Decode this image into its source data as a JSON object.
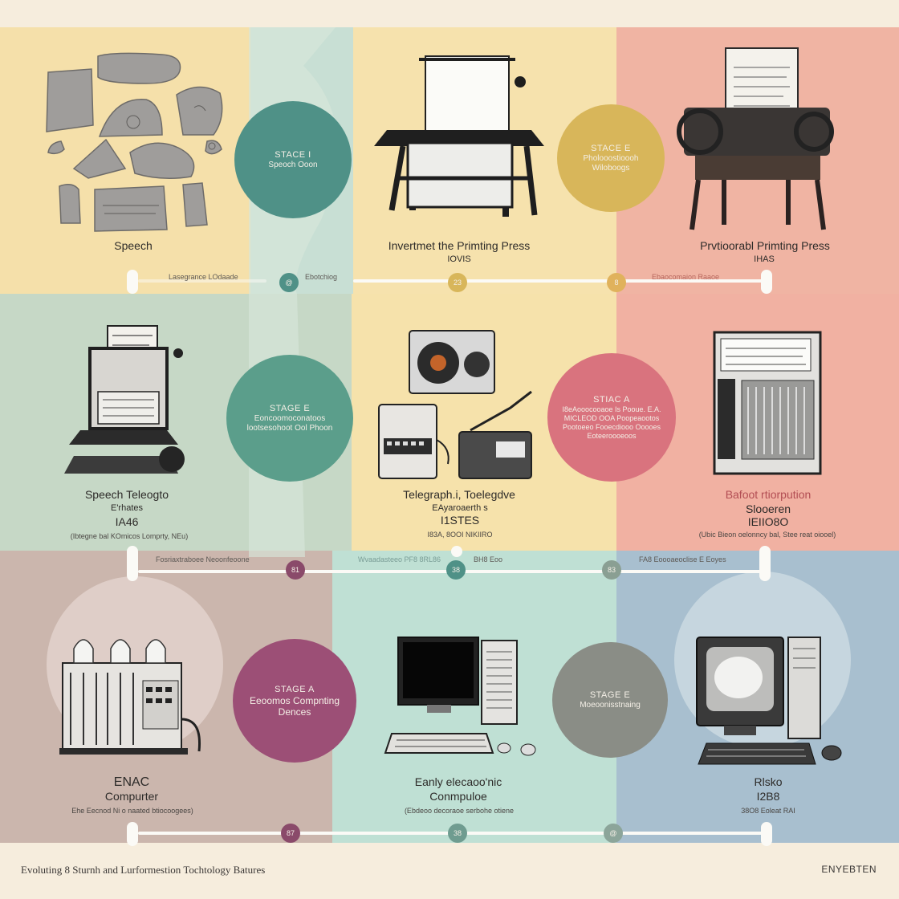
{
  "footer": {
    "title": "Evoluting 8 Sturnh and Lurformestion Tochtology Batures",
    "brand": "ENYEBTEN"
  },
  "colors": {
    "cream": "#f6eddd",
    "yellow": "#f5e0aa",
    "salmon": "#f0b4a3",
    "sage": "#c7d9c9",
    "mint": "#bfe0d6",
    "mauve": "#cbb5ac",
    "blue": "#a7bfcf",
    "teal": "#4f9187",
    "mustard": "#d8b65a",
    "tealgreen": "#5b9e8b",
    "rose": "#d9737e",
    "plum": "#9c4f76",
    "slate": "#8a8d86"
  },
  "row1": {
    "left_label": "Speech",
    "stage1": {
      "title": "STACE I",
      "sub": "Speoch Ooon"
    },
    "mid_label": "Invertmet the Primting Press",
    "mid_year": "IOVIS",
    "stage2": {
      "title": "STACE E",
      "sub": "Pholooostioooh Wiloboogs"
    },
    "right_label": "Prvtioorabl Primting Press",
    "right_year": "IHAS"
  },
  "timeline1": {
    "labels": [
      "Lasegrance LOdaade",
      "Ebotchiog",
      "Ebaocomaion Raaoe"
    ],
    "nodes": [
      "@",
      "23",
      "8"
    ]
  },
  "row2": {
    "left_label": "Speech Teleogto",
    "left_sub": "E'rhates",
    "left_year": "IA46",
    "left_note": "(Ibtegne bal KOmicos Lomprty, NEu)",
    "stage3": {
      "title": "STAGE E",
      "sub": "Eoncoomoconatoos lootsesohoot Ool Phoon"
    },
    "mid_label": "Telegraph.i, Toelegdve",
    "mid_sub": "EAyaroaerth s",
    "mid_year": "I1STES",
    "mid_note": "I83A, 8OOI NIKIIRO",
    "stage4": {
      "title": "STIAC A",
      "sub": "I8eAooocooaoe Is Pooue. E.A. MICLEOD OOA Poopeaootos Pootoeeo Fooecdiooo Ooooes Eoteeroooeoos"
    },
    "right_label": "Bafoot rtiorpution",
    "right_sub": "Slooeren",
    "right_year": "IEIIO8O",
    "right_note": "(Ubic Bieon oelonncy bal, Stee reat oiooel)"
  },
  "timeline2": {
    "labels": [
      "Fosriaxtraboee Neoonfeoone",
      "Wvaadasteeo PF8 8RL86",
      "BH8 Eoo",
      "FA8 Eoooaeoclise E Eoyes"
    ],
    "nodes": [
      "81",
      "38",
      "83"
    ]
  },
  "row3": {
    "left_label": "ENAC",
    "left_sub": "Compurter",
    "left_note": "Ehe Eecnod Ni o naated btiocoogees)",
    "stage5": {
      "title": "STAGE A",
      "sub": "Eeoomos Compnting Dences"
    },
    "mid_label": "Eanly elecaoo'nic",
    "mid_sub": "Conmpuloe",
    "mid_note": "(Ebdeoo decoraoe serbohe otiene",
    "stage6": {
      "title": "STAGE E",
      "sub": "Moeoonisstnaing"
    },
    "right_label": "Rlsko",
    "right_year": "I2B8",
    "right_note": "38O8 Eoleat RAI"
  },
  "timeline3": {
    "nodes": [
      "87",
      "38",
      "@"
    ]
  }
}
